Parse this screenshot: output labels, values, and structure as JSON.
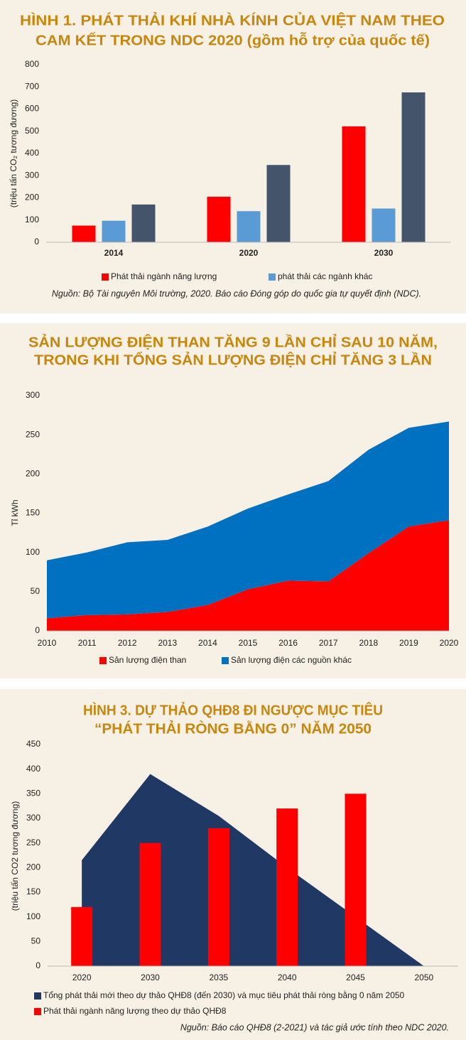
{
  "chart_data": [
    {
      "type": "bar",
      "title": [
        "HÌNH 1. PHÁT THẢI KHÍ NHÀ KÍNH CỦA VIỆT NAM THEO",
        "CAM KẾT TRONG NDC 2020 (gồm hỗ trợ của quốc tế)"
      ],
      "ylabel": "(triệu tấn CO₂ tương đương)",
      "categories": [
        "2014",
        "2020",
        "2030"
      ],
      "series": [
        {
          "name": "Phát thải ngành năng lượng",
          "color": "#ff0000",
          "values": [
            75,
            205,
            522
          ]
        },
        {
          "name": "phát thải các ngành khác",
          "color": "#5b9bd5",
          "values": [
            97,
            140,
            152
          ]
        },
        {
          "color": "#44546a",
          "values": [
            170,
            348,
            675
          ]
        }
      ],
      "ylim": [
        0,
        800
      ],
      "yticks": [
        0,
        100,
        200,
        300,
        400,
        500,
        600,
        700,
        800
      ],
      "grid": false,
      "legend": "bottom",
      "source": "Nguồn: Bộ Tài nguyên Môi trường, 2020. Báo cáo Đóng góp do quốc gia tự quyết định (NDC)."
    },
    {
      "type": "area",
      "stacked": true,
      "title": [
        "SẢN LƯỢNG ĐIỆN THAN TĂNG 9 LẦN CHỈ SAU 10 NĂM,",
        "TRONG KHI TỔNG SẢN LƯỢNG ĐIỆN CHỈ TĂNG 3 LẦN"
      ],
      "ylabel": "Tỉ kWh",
      "x": [
        2010,
        2011,
        2012,
        2013,
        2014,
        2015,
        2016,
        2017,
        2018,
        2019,
        2020
      ],
      "series": [
        {
          "name": "Sản lượng điện than",
          "color": "#ff0000",
          "values": [
            16,
            20,
            21,
            24,
            33,
            53,
            64,
            63,
            99,
            133,
            141
          ]
        },
        {
          "name": "Sản lượng điện các nguồn khác",
          "color": "#0070c0",
          "values": [
            74,
            80,
            92,
            92,
            100,
            103,
            110,
            128,
            132,
            126,
            126
          ]
        }
      ],
      "xlim": [
        2010,
        2020
      ],
      "xticks": [
        2010,
        2011,
        2012,
        2013,
        2014,
        2015,
        2016,
        2017,
        2018,
        2019,
        2020
      ],
      "ylim": [
        0,
        300
      ],
      "yticks": [
        0,
        50,
        100,
        150,
        200,
        250,
        300
      ],
      "grid": false,
      "legend": "bottom"
    },
    {
      "type": "combo",
      "title": [
        "HÌNH 3. DỰ THẢO QHĐ8 ĐI NGƯỢC MỤC TIÊU",
        "“PHÁT THẢI RÒNG BẰNG 0” NĂM 2050"
      ],
      "ylabel": "(triệu tấn CO2 tương đương)",
      "categories": [
        "2020",
        "2030",
        "2035",
        "2040",
        "2045",
        "2050"
      ],
      "series": [
        {
          "name": "Tổng phát thải mới theo dự thảo QHĐ8 (đến 2030) và mục tiêu phát thải ròng bằng 0 năm 2050",
          "type": "area",
          "color": "#203864",
          "values": [
            215,
            390,
            305,
            200,
            100,
            0
          ]
        },
        {
          "name": "Phát thải ngành năng lượng theo dự thảo QHĐ8",
          "type": "bar",
          "color": "#ff0000",
          "values": [
            120,
            250,
            280,
            320,
            350,
            null
          ]
        }
      ],
      "ylim": [
        0,
        450
      ],
      "yticks": [
        0,
        50,
        100,
        150,
        200,
        250,
        300,
        350,
        400,
        450
      ],
      "grid": false,
      "legend": "bottom",
      "source": "Nguồn: Báo cáo QHĐ8 (2-2021) và tác giả ước tính theo NDC 2020."
    }
  ]
}
